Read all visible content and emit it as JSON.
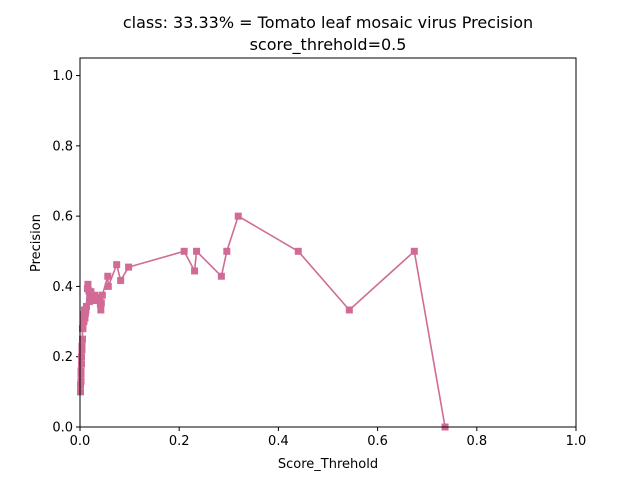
{
  "chart_data": {
    "type": "line",
    "title_line1": "class: 33.33% = Tomato leaf mosaic virus Precision",
    "title_line2": "score_threhold=0.5",
    "xlabel": "Score_Threhold",
    "ylabel": "Precision",
    "xlim": [
      0,
      1.0
    ],
    "ylim": [
      0,
      1.05
    ],
    "xticks": [
      0.0,
      0.2,
      0.4,
      0.6,
      0.8,
      1.0
    ],
    "xtick_labels": [
      "0.0",
      "0.2",
      "0.4",
      "0.6",
      "0.8",
      "1.0"
    ],
    "yticks": [
      0.0,
      0.2,
      0.4,
      0.6,
      0.8,
      1.0
    ],
    "ytick_labels": [
      "0.0",
      "0.2",
      "0.4",
      "0.6",
      "0.8",
      "1.0"
    ],
    "grid": false,
    "color": "#d16b96",
    "marker": "square",
    "series": [
      {
        "x": [
          0.736,
          0.674,
          0.543,
          0.44,
          0.319,
          0.296,
          0.285,
          0.235,
          0.231,
          0.21,
          0.098,
          0.082,
          0.074,
          0.057,
          0.056,
          0.045,
          0.043,
          0.042,
          0.041,
          0.04,
          0.035,
          0.03,
          0.025,
          0.022,
          0.02,
          0.019,
          0.018,
          0.016,
          0.015,
          0.013,
          0.012,
          0.011,
          0.01,
          0.009,
          0.008,
          0.007,
          0.006,
          0.005,
          0.005,
          0.004,
          0.004,
          0.003,
          0.003,
          0.002,
          0.002,
          0.002,
          0.001,
          0.001
        ],
        "y": [
          0.0,
          0.5,
          0.333,
          0.5,
          0.6,
          0.5,
          0.429,
          0.5,
          0.444,
          0.5,
          0.455,
          0.417,
          0.462,
          0.4,
          0.429,
          0.375,
          0.353,
          0.333,
          0.35,
          0.368,
          0.36,
          0.375,
          0.36,
          0.385,
          0.37,
          0.357,
          0.387,
          0.406,
          0.394,
          0.343,
          0.333,
          0.324,
          0.31,
          0.333,
          0.3,
          0.32,
          0.28,
          0.28,
          0.25,
          0.23,
          0.22,
          0.2,
          0.18,
          0.16,
          0.15,
          0.13,
          0.12,
          0.1
        ]
      }
    ]
  }
}
